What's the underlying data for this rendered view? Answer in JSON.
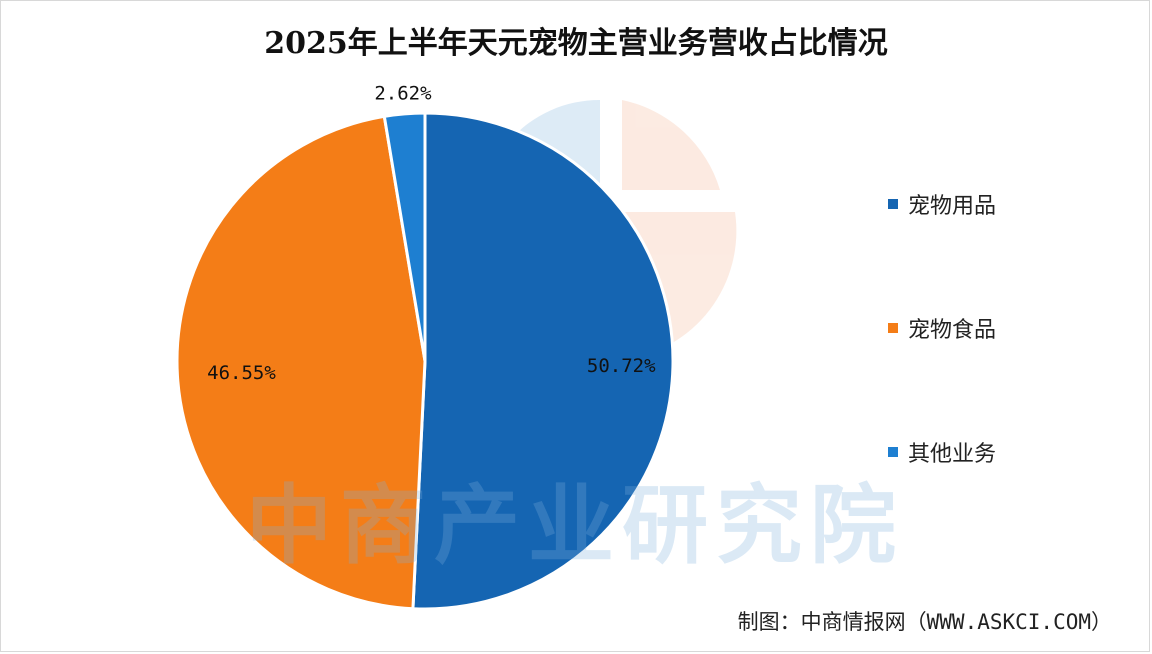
{
  "chart_data": {
    "type": "pie",
    "title": "2025年上半年天元宠物主营业务营收占比情况",
    "slices": [
      {
        "label": "宠物用品",
        "value": 50.72,
        "display": "50.72%",
        "color": "#1565b2"
      },
      {
        "label": "宠物食品",
        "value": 46.55,
        "display": "46.55%",
        "color": "#f47d17"
      },
      {
        "label": "其他业务",
        "value": 2.62,
        "display": "2.62%",
        "color": "#1e7fd1"
      }
    ],
    "legend_position": "right"
  },
  "watermark": "中商产业研究院",
  "source": "制图：中商情报网（WWW.ASKCI.COM）"
}
